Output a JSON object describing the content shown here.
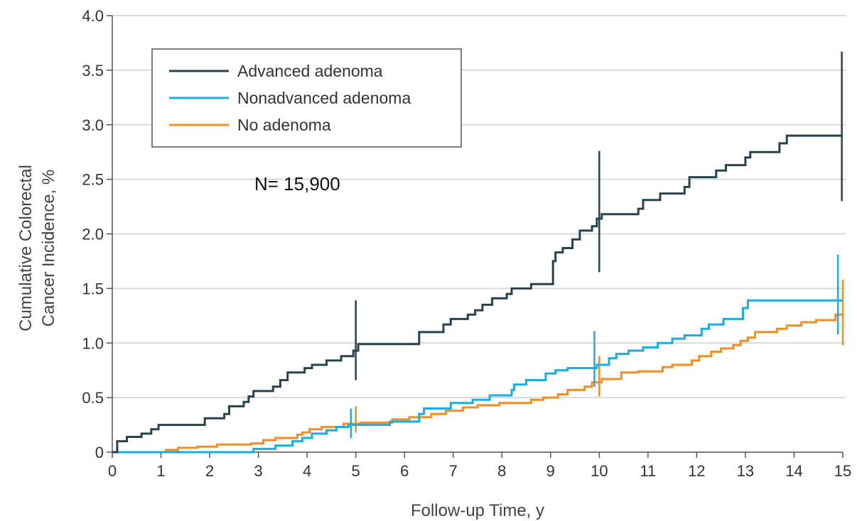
{
  "chart_data": {
    "type": "line",
    "step": true,
    "title": "",
    "xlabel": "Follow-up Time, y",
    "ylabel_line1": "Cumulative Colorectal",
    "ylabel_line2": "Cancer Incidence, %",
    "xlim": [
      0,
      15
    ],
    "ylim": [
      0,
      4.0
    ],
    "x_ticks": [
      "0",
      "1",
      "2",
      "3",
      "4",
      "5",
      "6",
      "7",
      "8",
      "9",
      "10",
      "11",
      "12",
      "13",
      "14",
      "15"
    ],
    "y_ticks": [
      "0",
      "0.5",
      "1.0",
      "1.5",
      "2.0",
      "2.5",
      "3.0",
      "3.5",
      "4.0"
    ],
    "grid": "horizontal",
    "legend_position": "top-left",
    "annotation": "N= 15,900",
    "series": [
      {
        "name": "Advanced adenoma",
        "color": "#27434f",
        "points": [
          [
            0,
            0
          ],
          [
            0.1,
            0.1
          ],
          [
            0.3,
            0.14
          ],
          [
            0.6,
            0.17
          ],
          [
            0.8,
            0.21
          ],
          [
            0.95,
            0.25
          ],
          [
            1.9,
            0.31
          ],
          [
            2.3,
            0.35
          ],
          [
            2.4,
            0.42
          ],
          [
            2.7,
            0.46
          ],
          [
            2.8,
            0.51
          ],
          [
            2.9,
            0.56
          ],
          [
            3.3,
            0.6
          ],
          [
            3.45,
            0.66
          ],
          [
            3.6,
            0.73
          ],
          [
            3.95,
            0.77
          ],
          [
            4.1,
            0.8
          ],
          [
            4.4,
            0.84
          ],
          [
            4.7,
            0.88
          ],
          [
            4.95,
            0.93
          ],
          [
            5.05,
            0.99
          ],
          [
            6.3,
            1.1
          ],
          [
            6.8,
            1.17
          ],
          [
            6.95,
            1.22
          ],
          [
            7.3,
            1.26
          ],
          [
            7.45,
            1.3
          ],
          [
            7.6,
            1.35
          ],
          [
            7.8,
            1.41
          ],
          [
            8.1,
            1.45
          ],
          [
            8.2,
            1.5
          ],
          [
            8.6,
            1.54
          ],
          [
            9.05,
            1.75
          ],
          [
            9.1,
            1.83
          ],
          [
            9.25,
            1.87
          ],
          [
            9.45,
            1.95
          ],
          [
            9.6,
            2.03
          ],
          [
            9.85,
            2.07
          ],
          [
            9.95,
            2.14
          ],
          [
            10.05,
            2.18
          ],
          [
            10.8,
            2.23
          ],
          [
            10.9,
            2.31
          ],
          [
            11.25,
            2.37
          ],
          [
            11.75,
            2.43
          ],
          [
            11.85,
            2.52
          ],
          [
            12.4,
            2.58
          ],
          [
            12.6,
            2.63
          ],
          [
            13.0,
            2.7
          ],
          [
            13.1,
            2.75
          ],
          [
            13.7,
            2.83
          ],
          [
            13.85,
            2.9
          ],
          [
            15,
            2.9
          ]
        ],
        "errorbars": [
          [
            5,
            0.66,
            1.39
          ],
          [
            10,
            1.65,
            2.76
          ],
          [
            14.98,
            2.3,
            3.67
          ]
        ]
      },
      {
        "name": "Nonadvanced adenoma",
        "color": "#1aace2",
        "points": [
          [
            0,
            0
          ],
          [
            2.9,
            0.03
          ],
          [
            3.35,
            0.06
          ],
          [
            3.7,
            0.1
          ],
          [
            3.9,
            0.13
          ],
          [
            4.1,
            0.17
          ],
          [
            4.4,
            0.2
          ],
          [
            4.6,
            0.23
          ],
          [
            4.85,
            0.25
          ],
          [
            5.7,
            0.28
          ],
          [
            6.3,
            0.35
          ],
          [
            6.4,
            0.4
          ],
          [
            6.95,
            0.45
          ],
          [
            7.4,
            0.48
          ],
          [
            7.75,
            0.52
          ],
          [
            8.2,
            0.57
          ],
          [
            8.25,
            0.62
          ],
          [
            8.5,
            0.66
          ],
          [
            8.9,
            0.72
          ],
          [
            9.1,
            0.75
          ],
          [
            9.35,
            0.77
          ],
          [
            9.95,
            0.8
          ],
          [
            10.2,
            0.86
          ],
          [
            10.35,
            0.9
          ],
          [
            10.6,
            0.93
          ],
          [
            10.9,
            0.96
          ],
          [
            11.2,
            1.0
          ],
          [
            11.5,
            1.04
          ],
          [
            11.75,
            1.07
          ],
          [
            12.1,
            1.13
          ],
          [
            12.25,
            1.17
          ],
          [
            12.55,
            1.22
          ],
          [
            12.95,
            1.32
          ],
          [
            13.05,
            1.39
          ],
          [
            15,
            1.39
          ]
        ],
        "errorbars": [
          [
            4.9,
            0.13,
            0.4
          ],
          [
            9.9,
            0.6,
            1.11
          ],
          [
            14.9,
            1.08,
            1.81
          ]
        ]
      },
      {
        "name": "No adenoma",
        "color": "#ef8f25",
        "points": [
          [
            0,
            0
          ],
          [
            1.1,
            0.02
          ],
          [
            1.35,
            0.04
          ],
          [
            1.75,
            0.05
          ],
          [
            2.15,
            0.07
          ],
          [
            2.85,
            0.08
          ],
          [
            3.1,
            0.11
          ],
          [
            3.35,
            0.13
          ],
          [
            3.8,
            0.16
          ],
          [
            3.9,
            0.18
          ],
          [
            4.05,
            0.21
          ],
          [
            4.3,
            0.23
          ],
          [
            4.75,
            0.26
          ],
          [
            5.1,
            0.27
          ],
          [
            5.75,
            0.3
          ],
          [
            6.1,
            0.32
          ],
          [
            6.55,
            0.35
          ],
          [
            6.85,
            0.38
          ],
          [
            7.2,
            0.41
          ],
          [
            7.5,
            0.43
          ],
          [
            7.95,
            0.45
          ],
          [
            8.6,
            0.48
          ],
          [
            8.85,
            0.5
          ],
          [
            9.15,
            0.53
          ],
          [
            9.35,
            0.57
          ],
          [
            9.7,
            0.6
          ],
          [
            9.85,
            0.64
          ],
          [
            10.05,
            0.67
          ],
          [
            10.45,
            0.73
          ],
          [
            10.8,
            0.74
          ],
          [
            11.3,
            0.78
          ],
          [
            11.5,
            0.8
          ],
          [
            11.9,
            0.84
          ],
          [
            12.05,
            0.88
          ],
          [
            12.3,
            0.92
          ],
          [
            12.5,
            0.95
          ],
          [
            12.75,
            0.98
          ],
          [
            12.9,
            1.02
          ],
          [
            13.05,
            1.05
          ],
          [
            13.2,
            1.1
          ],
          [
            13.65,
            1.13
          ],
          [
            13.85,
            1.16
          ],
          [
            14.15,
            1.19
          ],
          [
            14.45,
            1.21
          ],
          [
            14.85,
            1.26
          ],
          [
            15,
            1.26
          ]
        ],
        "errorbars": [
          [
            5,
            0.18,
            0.42
          ],
          [
            10,
            0.51,
            0.88
          ],
          [
            15,
            0.98,
            1.58
          ]
        ]
      }
    ]
  }
}
